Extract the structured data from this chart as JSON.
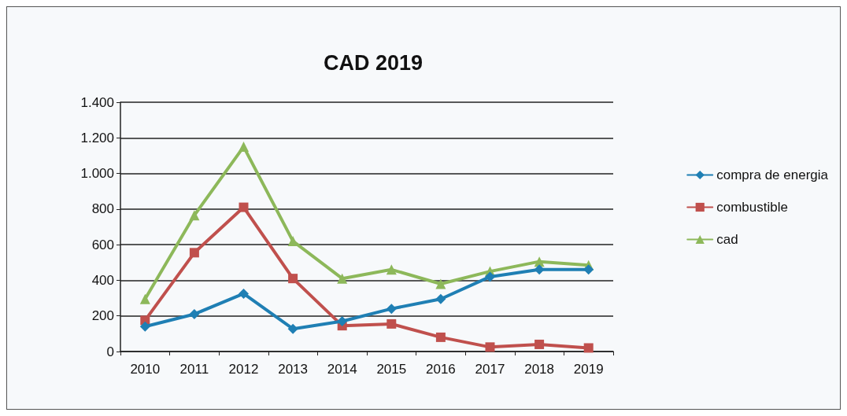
{
  "chart_data": {
    "type": "line",
    "title": "CAD 2019",
    "categories": [
      "2010",
      "2011",
      "2012",
      "2013",
      "2014",
      "2015",
      "2016",
      "2017",
      "2018",
      "2019"
    ],
    "series": [
      {
        "name": "compra de energia",
        "color": "#1f7fb4",
        "marker": "diamond",
        "values": [
          140,
          210,
          325,
          127,
          170,
          240,
          295,
          420,
          460,
          460
        ]
      },
      {
        "name": "combustible",
        "color": "#c0504d",
        "marker": "square",
        "values": [
          175,
          555,
          810,
          410,
          145,
          155,
          80,
          25,
          40,
          20
        ]
      },
      {
        "name": "cad",
        "color": "#8db85a",
        "marker": "triangle",
        "values": [
          295,
          765,
          1150,
          620,
          410,
          460,
          380,
          450,
          505,
          485
        ]
      }
    ],
    "ylim": [
      0,
      1400
    ],
    "yticks": [
      0,
      200,
      400,
      600,
      800,
      {
        "value": 1000,
        "label": "1.000"
      },
      {
        "value": 1200,
        "label": "1.200"
      },
      {
        "value": 1400,
        "label": "1.400"
      }
    ],
    "grid": "y",
    "legend": "right",
    "line_style": "solid"
  }
}
